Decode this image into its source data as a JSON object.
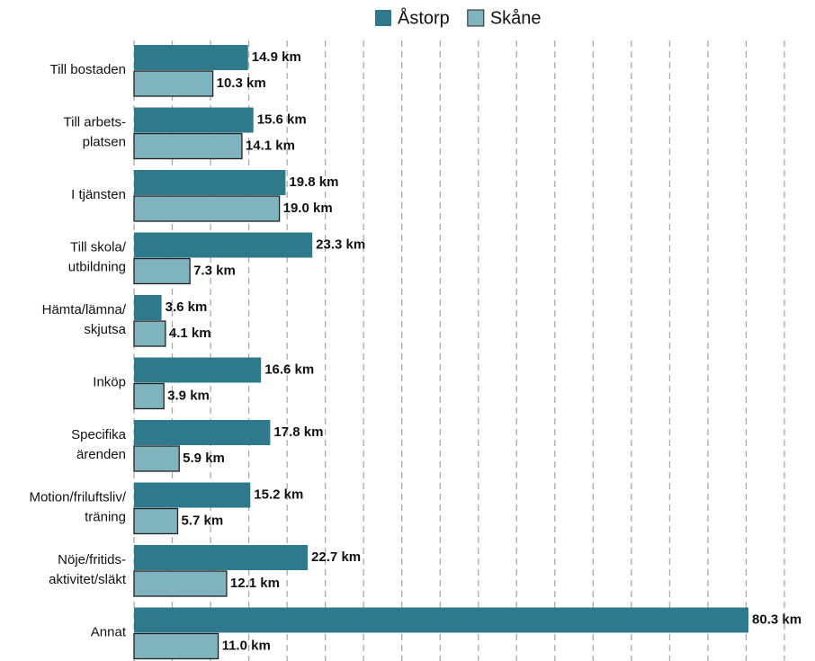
{
  "chart_data": {
    "type": "barh",
    "categories": [
      "Till bostaden",
      "Till arbets-\nplatsen",
      "I tjänsten",
      "Till skola/\nutbildning",
      "Hämta/lämna/\nskjutsa",
      "Inköp",
      "Specifika\närenden",
      "Motion/friluftsliv/\nträning",
      "Nöje/fritids-\naktivitet/släkt",
      "Annat"
    ],
    "series": [
      {
        "name": "Åstorp",
        "color": "#2e7a8c",
        "values": [
          14.9,
          15.6,
          19.8,
          23.3,
          3.6,
          16.6,
          17.8,
          15.2,
          22.7,
          80.3
        ],
        "value_labels": [
          "14.9 km",
          "15.6 km",
          "19.8 km",
          "23.3 km",
          "3.6 km",
          "16.6 km",
          "17.8 km",
          "15.2 km",
          "22.7 km",
          "80.3 km"
        ]
      },
      {
        "name": "Skåne",
        "color": "#7fb3bd",
        "values": [
          10.3,
          14.1,
          19.0,
          7.3,
          4.1,
          3.9,
          5.9,
          5.7,
          12.1,
          11.0
        ],
        "value_labels": [
          "10.3 km",
          "14.1 km",
          "19.0 km",
          "7.3 km",
          "4.1 km",
          "3.9 km",
          "5.9 km",
          "5.7 km",
          "12.1 km",
          "11.0 km"
        ]
      }
    ],
    "xlim": [
      0,
      85
    ],
    "xticks": [
      0,
      5,
      10,
      15,
      20,
      25,
      30,
      35,
      40,
      45,
      50,
      55,
      60,
      65,
      70,
      75,
      80,
      85
    ],
    "grid": true,
    "legend": "top"
  }
}
